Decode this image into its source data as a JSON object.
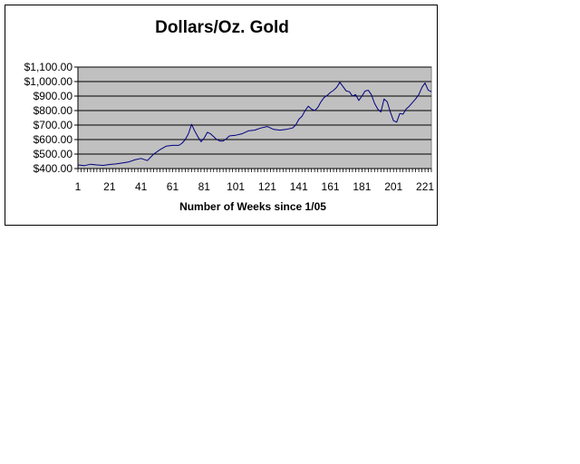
{
  "chart_data": {
    "type": "line",
    "title": "Dollars/Oz. Gold",
    "xlabel": "Number of Weeks since 1/05",
    "ylabel": "",
    "xlim": [
      1,
      225
    ],
    "ylim": [
      400,
      1100
    ],
    "y_ticks": [
      400,
      500,
      600,
      700,
      800,
      900,
      1000,
      1100
    ],
    "y_tick_labels": [
      "$400.00",
      "$500.00",
      "$600.00",
      "$700.00",
      "$800.00",
      "$900.00",
      "$1,000.00",
      "$1,100.00"
    ],
    "x_ticks": [
      1,
      21,
      41,
      61,
      81,
      101,
      121,
      141,
      161,
      181,
      201,
      221
    ],
    "x_tick_labels": [
      "1",
      "21",
      "41",
      "61",
      "81",
      "101",
      "121",
      "141",
      "161",
      "181",
      "201",
      "221"
    ],
    "grid": true,
    "legend": "none",
    "plot_background": "#c0c0c0",
    "series": [
      {
        "color": "#000080",
        "x": [
          1,
          5,
          9,
          13,
          17,
          21,
          25,
          29,
          33,
          37,
          41,
          45,
          49,
          53,
          57,
          61,
          65,
          67,
          69,
          71,
          73,
          75,
          77,
          79,
          81,
          83,
          85,
          87,
          89,
          91,
          93,
          95,
          97,
          101,
          105,
          109,
          113,
          117,
          121,
          125,
          129,
          133,
          137,
          139,
          141,
          143,
          145,
          147,
          149,
          151,
          153,
          155,
          157,
          159,
          161,
          163,
          165,
          167,
          169,
          171,
          173,
          175,
          177,
          179,
          181,
          183,
          185,
          187,
          189,
          191,
          193,
          195,
          197,
          199,
          201,
          203,
          205,
          207,
          209,
          211,
          213,
          215,
          217,
          219,
          221,
          223,
          225
        ],
        "y": [
          425,
          420,
          430,
          425,
          422,
          428,
          432,
          438,
          445,
          460,
          470,
          455,
          500,
          530,
          555,
          560,
          560,
          575,
          600,
          640,
          705,
          660,
          620,
          585,
          610,
          650,
          640,
          620,
          600,
          590,
          590,
          605,
          625,
          630,
          640,
          660,
          665,
          680,
          690,
          670,
          665,
          670,
          680,
          700,
          740,
          760,
          800,
          830,
          810,
          800,
          820,
          860,
          890,
          905,
          925,
          940,
          960,
          995,
          965,
          935,
          930,
          900,
          910,
          870,
          900,
          935,
          940,
          910,
          850,
          810,
          790,
          880,
          860,
          790,
          730,
          720,
          780,
          775,
          810,
          830,
          855,
          880,
          910,
          960,
          990,
          940,
          930
        ]
      }
    ]
  }
}
